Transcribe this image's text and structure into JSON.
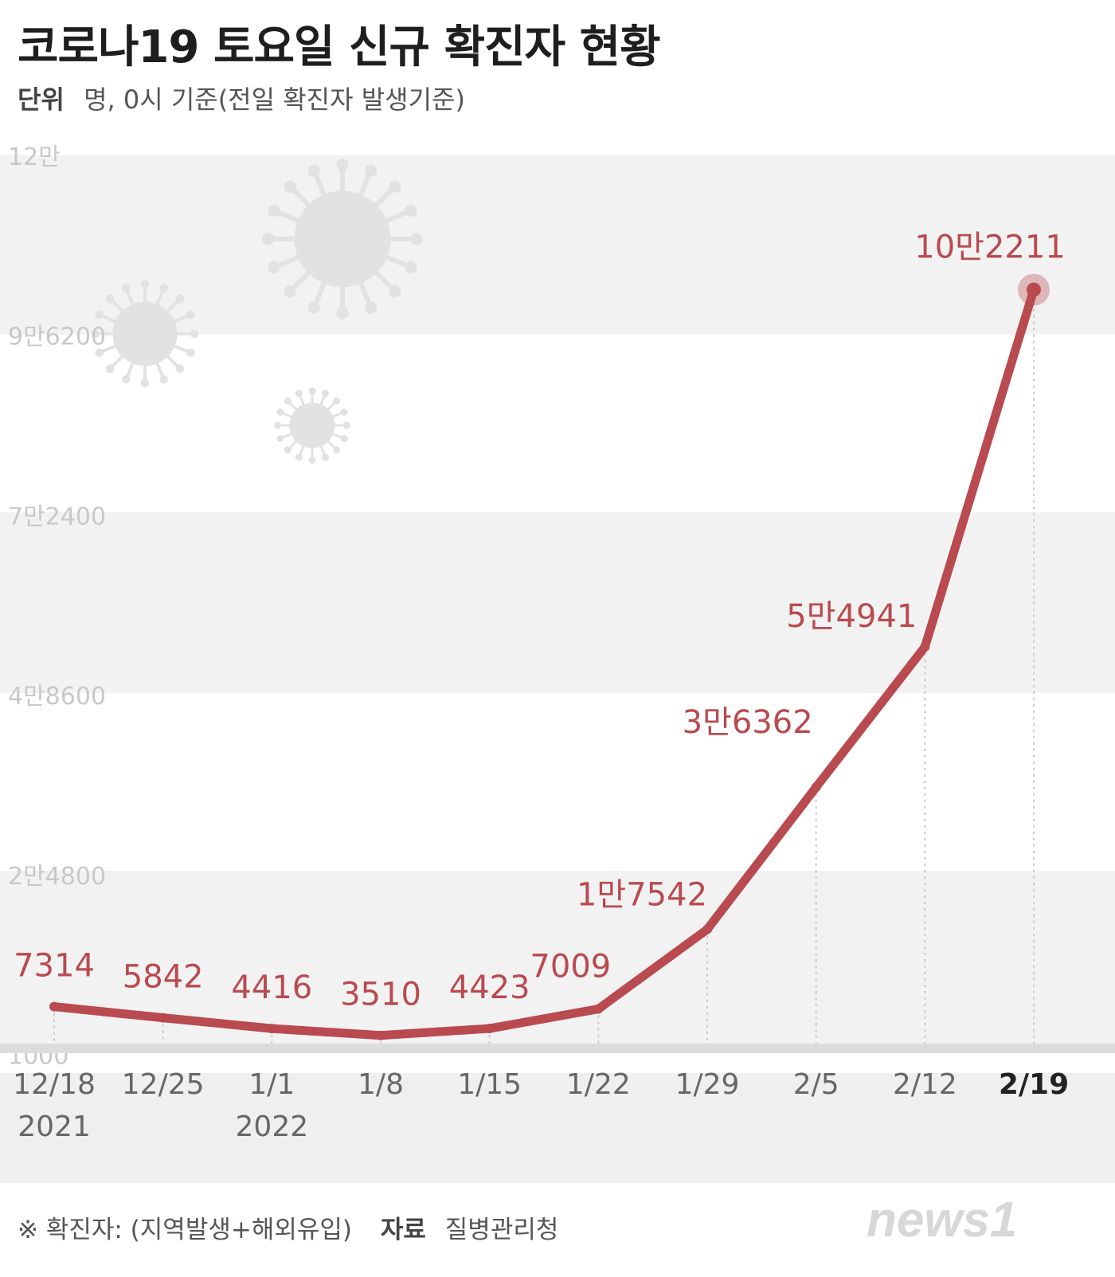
{
  "header": {
    "title": "코로나19 토요일 신규 확진자 현황",
    "unit_label": "단위",
    "unit_text": "명, 0시 기준(전일 확진자 발생기준)"
  },
  "footer": {
    "note": "※ 확진자: (지역발생+해외유입)",
    "source_label": "자료",
    "source": "질병관리청"
  },
  "logo": {
    "text": "news1"
  },
  "colors": {
    "line": "#b94a4f",
    "band": "#f2f2f2",
    "tick": "#c8c8c8",
    "axis_band": "#efefef"
  },
  "chart_data": {
    "type": "line",
    "categories": [
      "12/18",
      "12/25",
      "1/1",
      "1/8",
      "1/15",
      "1/22",
      "1/29",
      "2/5",
      "2/12",
      "2/19"
    ],
    "year_labels": [
      {
        "index": 0,
        "text": "2021"
      },
      {
        "index": 2,
        "text": "2022"
      }
    ],
    "highlight_category": "2/19",
    "series": [
      {
        "values": [
          7314,
          5842,
          4416,
          3510,
          4423,
          7009,
          17542,
          36362,
          54941,
          102211
        ],
        "labels": [
          "7314",
          "5842",
          "4416",
          "3510",
          "4423",
          "7009",
          "1만7542",
          "3만6362",
          "5만4941",
          "10만2211"
        ]
      }
    ],
    "y_ticks": [
      1000,
      24800,
      48600,
      72400,
      96200,
      120000
    ],
    "y_tick_labels": [
      "1000",
      "2만4800",
      "4만8600",
      "7만2400",
      "9만6200",
      "12만"
    ],
    "ylim": [
      0,
      120000
    ],
    "grid": true
  }
}
